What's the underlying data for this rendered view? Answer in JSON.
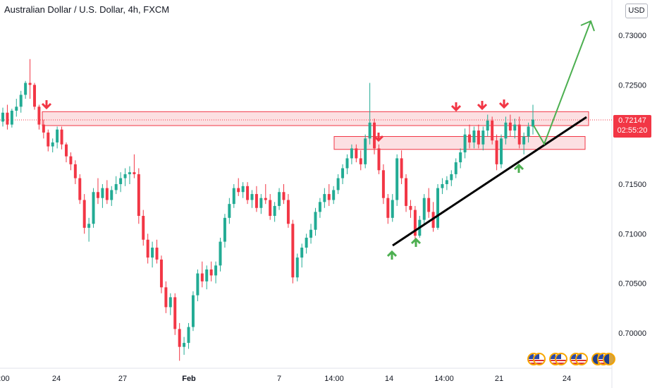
{
  "header": {
    "title": "Australian Dollar / U.S. Dollar, 4h, FXCM",
    "currency": "USD"
  },
  "price_tag": {
    "price": "0.72147",
    "countdown": "02:55:20",
    "color": "#f23645"
  },
  "colors": {
    "bull": "#22ab94",
    "bear": "#f23645",
    "zone_fill": "#fbd3d6",
    "zone_stroke": "#f23645",
    "trendline": "#000000",
    "projection": "#4caf50",
    "down_arrow": "#f23645",
    "up_arrow": "#4caf50"
  },
  "icons": [
    "down-arrow-icon",
    "up-arrow-icon",
    "flag-icon"
  ],
  "chart_data": {
    "type": "candlestick",
    "title": "Australian Dollar / U.S. Dollar, 4h, FXCM",
    "ylim": [
      0.696,
      0.734
    ],
    "y_ticks": [
      "0.73000",
      "0.72500",
      "0.72000",
      "0.71500",
      "0.71000",
      "0.70500",
      "0.70000"
    ],
    "x_ticks": [
      ":00",
      "24",
      "27",
      "Feb",
      "7",
      "14:00",
      "14",
      "14:00",
      "21",
      "24"
    ],
    "grid": false,
    "current_price": 0.72147,
    "candles": [
      [
        0.7213,
        0.7227,
        0.7208,
        0.7222
      ],
      [
        0.7222,
        0.723,
        0.7205,
        0.721
      ],
      [
        0.721,
        0.7226,
        0.7207,
        0.7224
      ],
      [
        0.7224,
        0.7236,
        0.7218,
        0.7228
      ],
      [
        0.7228,
        0.7244,
        0.7222,
        0.724
      ],
      [
        0.724,
        0.7254,
        0.7236,
        0.7252
      ],
      [
        0.7252,
        0.7276,
        0.7236,
        0.725
      ],
      [
        0.725,
        0.7252,
        0.7225,
        0.7228
      ],
      [
        0.7228,
        0.723,
        0.7205,
        0.721
      ],
      [
        0.721,
        0.7215,
        0.7196,
        0.7202
      ],
      [
        0.7202,
        0.7205,
        0.7183,
        0.7188
      ],
      [
        0.7188,
        0.7196,
        0.7182,
        0.7192
      ],
      [
        0.7192,
        0.7208,
        0.7186,
        0.7205
      ],
      [
        0.7205,
        0.7208,
        0.7185,
        0.719
      ],
      [
        0.719,
        0.7192,
        0.7172,
        0.7178
      ],
      [
        0.7178,
        0.7182,
        0.7164,
        0.717
      ],
      [
        0.717,
        0.7174,
        0.715,
        0.7156
      ],
      [
        0.7156,
        0.716,
        0.713,
        0.7134
      ],
      [
        0.7134,
        0.714,
        0.71,
        0.7106
      ],
      [
        0.7106,
        0.7116,
        0.7092,
        0.711
      ],
      [
        0.711,
        0.7146,
        0.7106,
        0.7142
      ],
      [
        0.7142,
        0.7156,
        0.713,
        0.7136
      ],
      [
        0.7136,
        0.715,
        0.7126,
        0.7146
      ],
      [
        0.7146,
        0.7154,
        0.713,
        0.7134
      ],
      [
        0.7134,
        0.7148,
        0.7128,
        0.7144
      ],
      [
        0.7144,
        0.7158,
        0.714,
        0.715
      ],
      [
        0.715,
        0.7162,
        0.7142,
        0.7156
      ],
      [
        0.7156,
        0.7166,
        0.7148,
        0.716
      ],
      [
        0.716,
        0.7168,
        0.715,
        0.7162
      ],
      [
        0.7162,
        0.718,
        0.7156,
        0.716
      ],
      [
        0.716,
        0.7166,
        0.711,
        0.7118
      ],
      [
        0.7118,
        0.7124,
        0.7088,
        0.7094
      ],
      [
        0.7094,
        0.71,
        0.707,
        0.7076
      ],
      [
        0.7076,
        0.7092,
        0.7066,
        0.7086
      ],
      [
        0.7086,
        0.7094,
        0.707,
        0.7074
      ],
      [
        0.7074,
        0.7078,
        0.704,
        0.7046
      ],
      [
        0.7046,
        0.7052,
        0.702,
        0.7026
      ],
      [
        0.7026,
        0.704,
        0.7018,
        0.7036
      ],
      [
        0.7036,
        0.704,
        0.6998,
        0.7004
      ],
      [
        0.7004,
        0.701,
        0.6972,
        0.6986
      ],
      [
        0.6986,
        0.6996,
        0.6978,
        0.699
      ],
      [
        0.699,
        0.701,
        0.6984,
        0.7006
      ],
      [
        0.7006,
        0.7042,
        0.7002,
        0.7038
      ],
      [
        0.7038,
        0.7064,
        0.7032,
        0.706
      ],
      [
        0.706,
        0.7072,
        0.7046,
        0.7052
      ],
      [
        0.7052,
        0.7068,
        0.7044,
        0.7064
      ],
      [
        0.7064,
        0.7072,
        0.7052,
        0.7058
      ],
      [
        0.7058,
        0.7072,
        0.705,
        0.7068
      ],
      [
        0.7068,
        0.7096,
        0.7062,
        0.7092
      ],
      [
        0.7092,
        0.712,
        0.7086,
        0.7116
      ],
      [
        0.7116,
        0.7136,
        0.711,
        0.713
      ],
      [
        0.713,
        0.715,
        0.7126,
        0.7146
      ],
      [
        0.7146,
        0.7156,
        0.7138,
        0.7142
      ],
      [
        0.7142,
        0.7152,
        0.7136,
        0.7148
      ],
      [
        0.7148,
        0.7152,
        0.713,
        0.7134
      ],
      [
        0.7134,
        0.7144,
        0.7126,
        0.714
      ],
      [
        0.714,
        0.7148,
        0.7122,
        0.7126
      ],
      [
        0.7126,
        0.714,
        0.712,
        0.7136
      ],
      [
        0.7136,
        0.715,
        0.713,
        0.7134
      ],
      [
        0.7134,
        0.714,
        0.7114,
        0.7118
      ],
      [
        0.7118,
        0.7132,
        0.7112,
        0.7128
      ],
      [
        0.7128,
        0.7146,
        0.7124,
        0.7142
      ],
      [
        0.7142,
        0.715,
        0.713,
        0.7134
      ],
      [
        0.7134,
        0.714,
        0.7106,
        0.711
      ],
      [
        0.711,
        0.7114,
        0.705,
        0.7056
      ],
      [
        0.7056,
        0.708,
        0.7052,
        0.7076
      ],
      [
        0.7076,
        0.709,
        0.7066,
        0.7086
      ],
      [
        0.7086,
        0.71,
        0.708,
        0.7096
      ],
      [
        0.7096,
        0.711,
        0.709,
        0.7104
      ],
      [
        0.7104,
        0.7126,
        0.7098,
        0.7122
      ],
      [
        0.7122,
        0.7136,
        0.7116,
        0.7132
      ],
      [
        0.7132,
        0.7146,
        0.7126,
        0.714
      ],
      [
        0.714,
        0.715,
        0.7128,
        0.7134
      ],
      [
        0.7134,
        0.7148,
        0.713,
        0.7144
      ],
      [
        0.7144,
        0.716,
        0.714,
        0.7156
      ],
      [
        0.7156,
        0.717,
        0.715,
        0.7166
      ],
      [
        0.7166,
        0.718,
        0.716,
        0.7176
      ],
      [
        0.7176,
        0.719,
        0.717,
        0.7186
      ],
      [
        0.7186,
        0.719,
        0.7172,
        0.7176
      ],
      [
        0.7176,
        0.7184,
        0.7164,
        0.717
      ],
      [
        0.717,
        0.72,
        0.7166,
        0.7196
      ],
      [
        0.7196,
        0.7252,
        0.719,
        0.7212
      ],
      [
        0.7212,
        0.7216,
        0.718,
        0.7186
      ],
      [
        0.7186,
        0.719,
        0.716,
        0.7164
      ],
      [
        0.7164,
        0.717,
        0.713,
        0.7136
      ],
      [
        0.7136,
        0.714,
        0.711,
        0.7116
      ],
      [
        0.7116,
        0.714,
        0.7112,
        0.7134
      ],
      [
        0.7134,
        0.718,
        0.7128,
        0.7176
      ],
      [
        0.7176,
        0.7184,
        0.715,
        0.7156
      ],
      [
        0.7156,
        0.716,
        0.7122,
        0.7128
      ],
      [
        0.7128,
        0.7134,
        0.7116,
        0.7124
      ],
      [
        0.7124,
        0.7128,
        0.709,
        0.7098
      ],
      [
        0.7098,
        0.7118,
        0.7096,
        0.7114
      ],
      [
        0.7114,
        0.714,
        0.7108,
        0.7136
      ],
      [
        0.7136,
        0.7146,
        0.7116,
        0.7122
      ],
      [
        0.7122,
        0.7132,
        0.7102,
        0.7106
      ],
      [
        0.7106,
        0.715,
        0.7104,
        0.7146
      ],
      [
        0.7146,
        0.7156,
        0.714,
        0.715
      ],
      [
        0.715,
        0.7158,
        0.7144,
        0.7154
      ],
      [
        0.7154,
        0.7164,
        0.7148,
        0.716
      ],
      [
        0.716,
        0.7176,
        0.7156,
        0.7172
      ],
      [
        0.7172,
        0.7186,
        0.7166,
        0.7182
      ],
      [
        0.7182,
        0.7206,
        0.7176,
        0.72
      ],
      [
        0.72,
        0.721,
        0.7186,
        0.7192
      ],
      [
        0.7192,
        0.7208,
        0.7186,
        0.7204
      ],
      [
        0.7204,
        0.721,
        0.7186,
        0.719
      ],
      [
        0.719,
        0.7208,
        0.7184,
        0.7204
      ],
      [
        0.7204,
        0.722,
        0.7198,
        0.7214
      ],
      [
        0.7214,
        0.7218,
        0.719,
        0.7194
      ],
      [
        0.7194,
        0.72,
        0.7164,
        0.717
      ],
      [
        0.717,
        0.72,
        0.7166,
        0.7196
      ],
      [
        0.7196,
        0.7218,
        0.719,
        0.7212
      ],
      [
        0.7212,
        0.722,
        0.7198,
        0.7204
      ],
      [
        0.7204,
        0.7216,
        0.7196,
        0.721
      ],
      [
        0.721,
        0.7218,
        0.7186,
        0.719
      ],
      [
        0.719,
        0.7202,
        0.718,
        0.7198
      ],
      [
        0.7198,
        0.7212,
        0.7192,
        0.7208
      ],
      [
        0.7208,
        0.723,
        0.72,
        0.7215
      ]
    ],
    "annotations": {
      "resistance_zone": [
        0.7209,
        0.7223
      ],
      "support_zone": [
        0.7185,
        0.7198
      ],
      "trendline": [
        [
          0.709,
          "14"
        ],
        [
          0.7223,
          "projection"
        ]
      ],
      "projection_target": 0.7322
    }
  }
}
